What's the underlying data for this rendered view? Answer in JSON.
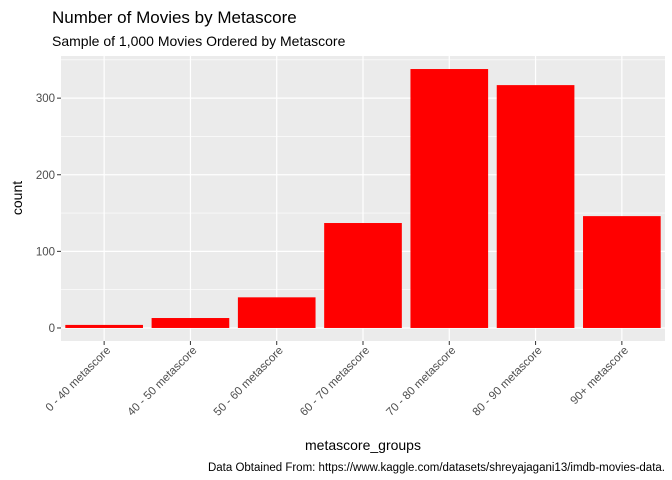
{
  "chart_data": {
    "type": "bar",
    "title": "Number of Movies by Metascore",
    "subtitle": "Sample of 1,000 Movies Ordered by Metascore",
    "xlabel": "metascore_groups",
    "ylabel": "count",
    "caption": "Data Obtained From: https://www.kaggle.com/datasets/shreyajagani13/imdb-movies-data.",
    "categories": [
      "0 - 40 metascore",
      "40 - 50 metascore",
      "50 - 60 metascore",
      "60 - 70 metascore",
      "70 - 80 metascore",
      "80 - 90 metascore",
      "90+ metascore"
    ],
    "values": [
      4,
      13,
      40,
      137,
      338,
      317,
      146
    ],
    "ylim": [
      -17,
      355
    ],
    "yticks": [
      0,
      100,
      200,
      300
    ],
    "bar_color": "#ff0000",
    "panel_color": "#ebebeb",
    "grid": true,
    "legend": "none"
  }
}
